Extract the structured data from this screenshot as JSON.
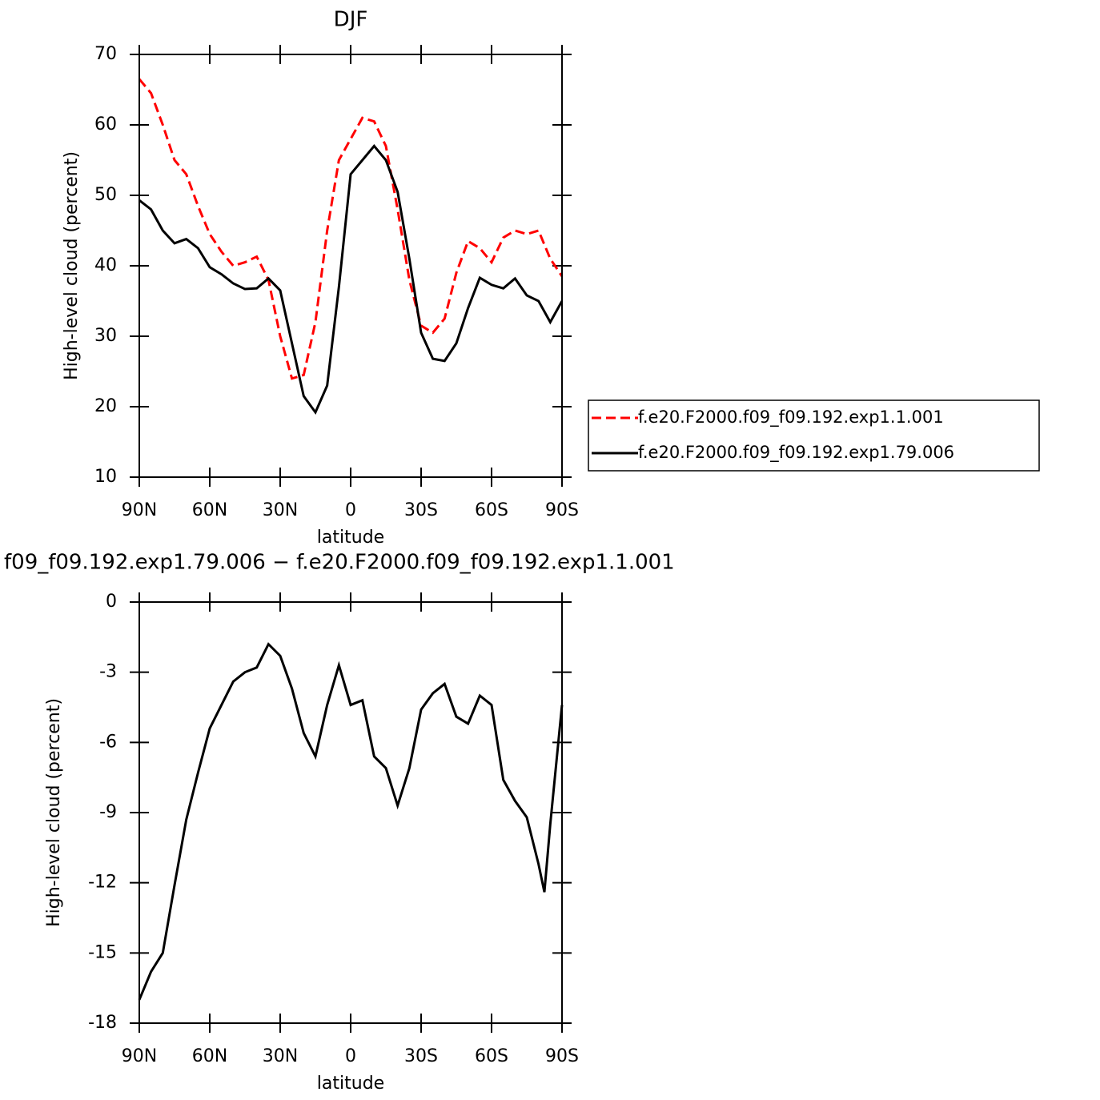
{
  "chart_data": [
    {
      "type": "line",
      "title": "DJF",
      "xlabel": "latitude",
      "ylabel": "High-level cloud (percent)",
      "x": [
        90,
        85,
        80,
        75,
        70,
        65,
        60,
        55,
        50,
        45,
        40,
        35,
        30,
        25,
        20,
        15,
        10,
        5,
        0,
        -5,
        -10,
        -15,
        -20,
        -25,
        -30,
        -35,
        -40,
        -45,
        -50,
        -55,
        -60,
        -65,
        -70,
        -75,
        -80,
        -85,
        -90
      ],
      "series": [
        {
          "name": "f.e20.F2000.f09_f09.192.exp1.1.001",
          "color": "#ff0000",
          "dash": "dashed",
          "values": [
            66.5,
            64.5,
            60,
            55,
            53,
            48.5,
            44.5,
            42,
            40,
            40.5,
            41.3,
            38,
            30,
            24,
            24.5,
            32,
            45,
            55,
            58,
            61,
            60.5,
            57,
            48,
            38,
            31.5,
            30.5,
            32.5,
            39,
            43.5,
            42.5,
            40.5,
            44,
            45,
            44.5,
            45,
            41,
            38.5
          ]
        },
        {
          "name": "f.e20.F2000.f09_f09.192.exp1.79.006",
          "color": "#000000",
          "dash": "solid",
          "values": [
            49.3,
            48,
            45,
            43.2,
            43.8,
            42.5,
            39.8,
            38.8,
            37.5,
            36.7,
            36.8,
            38.2,
            36.5,
            29,
            21.5,
            19.2,
            23,
            37,
            53,
            55,
            57,
            55,
            50.5,
            41,
            30.5,
            26.8,
            26.5,
            29,
            34,
            38.3,
            37.3,
            36.8,
            38.2,
            35.8,
            35,
            32,
            35
          ]
        }
      ],
      "xlim": [
        90,
        -90
      ],
      "ylim": [
        10,
        70
      ],
      "xticks": [
        {
          "value": 90,
          "label": "90N"
        },
        {
          "value": 60,
          "label": "60N"
        },
        {
          "value": 30,
          "label": "30N"
        },
        0,
        {
          "value": -30,
          "label": "30S"
        },
        {
          "value": -60,
          "label": "60S"
        },
        {
          "value": -90,
          "label": "90S"
        }
      ],
      "yticks": [
        10,
        20,
        30,
        40,
        50,
        60,
        70
      ],
      "legend": "right"
    },
    {
      "type": "line",
      "title": "f09_f09.192.exp1.79.006 − f.e20.F2000.f09_f09.192.exp1.1.001",
      "xlabel": "latitude",
      "ylabel": "High-level cloud (percent)",
      "x": [
        90,
        85,
        80,
        75,
        70,
        65,
        60,
        55,
        50,
        45,
        40,
        35,
        30,
        25,
        20,
        15,
        10,
        5,
        0,
        -5,
        -10,
        -15,
        -20,
        -25,
        -30,
        -35,
        -40,
        -45,
        -50,
        -55,
        -60,
        -65,
        -70,
        -75,
        -80,
        -82.5,
        -85,
        -90
      ],
      "series": [
        {
          "color": "#000000",
          "dash": "solid",
          "values": [
            -17,
            -15.8,
            -15,
            -12.1,
            -9.3,
            -7.3,
            -5.4,
            -4.4,
            -3.4,
            -3.0,
            -2.8,
            -1.8,
            -2.3,
            -3.7,
            -5.6,
            -6.6,
            -4.4,
            -2.7,
            -4.4,
            -4.2,
            -6.6,
            -7.1,
            -8.7,
            -7.1,
            -4.6,
            -3.9,
            -3.5,
            -4.9,
            -5.2,
            -4.0,
            -4.4,
            -7.6,
            -8.5,
            -9.2,
            -11.2,
            -12.4,
            -9.5,
            -4.4
          ]
        }
      ],
      "xlim": [
        90,
        -90
      ],
      "ylim": [
        -18,
        0
      ],
      "xticks": [
        {
          "value": 90,
          "label": "90N"
        },
        {
          "value": 60,
          "label": "60N"
        },
        {
          "value": 30,
          "label": "30N"
        },
        0,
        {
          "value": -30,
          "label": "30S"
        },
        {
          "value": -60,
          "label": "60S"
        },
        {
          "value": -90,
          "label": "90S"
        }
      ],
      "yticks": [
        -18,
        -15,
        -12,
        -9,
        -6,
        -3,
        0
      ]
    }
  ]
}
